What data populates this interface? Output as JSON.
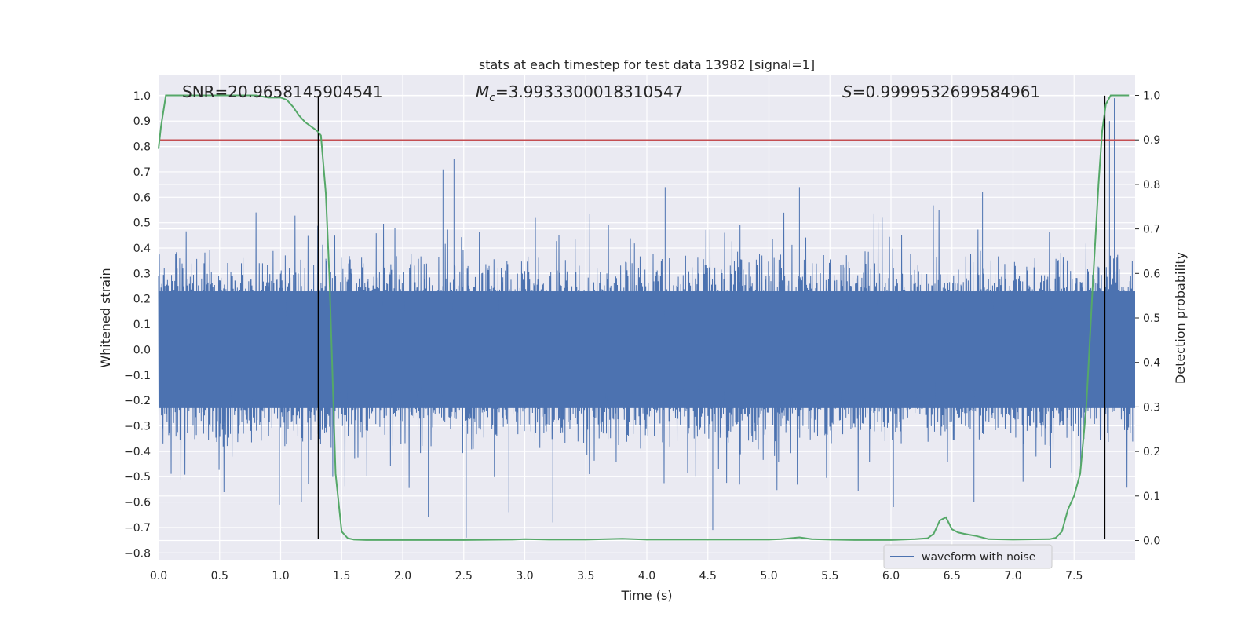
{
  "chart_data": {
    "type": "line",
    "title": "stats at each timestep for test data 13982 [signal=1]",
    "xlabel": "Time (s)",
    "ylabel": "Whitened strain",
    "y2label": "Detection probability",
    "xlim": [
      0.0,
      8.0
    ],
    "ylim": [
      -0.83,
      1.08
    ],
    "y2lim": [
      -0.045,
      1.045
    ],
    "x_ticks": [
      "0.0",
      "0.5",
      "1.0",
      "1.5",
      "2.0",
      "2.5",
      "3.0",
      "3.5",
      "4.0",
      "4.5",
      "5.0",
      "5.5",
      "6.0",
      "6.5",
      "7.0",
      "7.5"
    ],
    "y_ticks": [
      "1.0",
      "0.9",
      "0.8",
      "0.7",
      "0.6",
      "0.5",
      "0.4",
      "0.3",
      "0.2",
      "0.1",
      "0.0",
      "−0.1",
      "−0.2",
      "−0.3",
      "−0.4",
      "−0.5",
      "−0.6",
      "−0.7",
      "−0.8"
    ],
    "y2_ticks": [
      "1.0",
      "0.9",
      "0.8",
      "0.7",
      "0.6",
      "0.5",
      "0.4",
      "0.3",
      "0.2",
      "0.1",
      "0.0"
    ],
    "grid": true,
    "legend_position": "lower-right",
    "annotations": {
      "snr": "SNR=20.9658145904541",
      "mc_symbol": "M",
      "mc_sub": "c",
      "mc_value": "=3.9933300018310547",
      "s_symbol": "S",
      "s_value": "=0.9999532699584961"
    },
    "series": [
      {
        "name": "waveform with noise",
        "axis": "left",
        "color": "#4c72b0",
        "style": "noise",
        "x_range": [
          0.0,
          7.98
        ],
        "envelope_typical": [
          -0.45,
          0.45
        ],
        "envelope_peak": [
          -0.74,
          0.99
        ],
        "peaks": [
          {
            "x": 2.33,
            "y": 0.71
          },
          {
            "x": 2.42,
            "y": 0.75
          },
          {
            "x": 4.15,
            "y": 0.64
          },
          {
            "x": 5.25,
            "y": 0.64
          },
          {
            "x": 6.75,
            "y": 0.62
          },
          {
            "x": 7.83,
            "y": 0.99
          },
          {
            "x": 7.79,
            "y": 0.9
          },
          {
            "x": 2.52,
            "y": -0.74
          },
          {
            "x": 4.54,
            "y": -0.71
          },
          {
            "x": 3.23,
            "y": -0.68
          },
          {
            "x": 2.87,
            "y": -0.64
          },
          {
            "x": 2.21,
            "y": -0.66
          },
          {
            "x": 1.17,
            "y": -0.6
          },
          {
            "x": 0.99,
            "y": -0.61
          },
          {
            "x": 6.68,
            "y": -0.6
          },
          {
            "x": 6.02,
            "y": -0.62
          }
        ]
      },
      {
        "name": "",
        "axis": "right",
        "color": "#55a868",
        "x": [
          0.0,
          0.02,
          0.06,
          0.1,
          0.2,
          0.4,
          0.6,
          0.8,
          0.9,
          1.0,
          1.05,
          1.1,
          1.15,
          1.2,
          1.25,
          1.3,
          1.33,
          1.37,
          1.4,
          1.45,
          1.5,
          1.55,
          1.6,
          1.7,
          1.8,
          2.0,
          2.5,
          2.9,
          3.0,
          3.2,
          3.5,
          3.8,
          4.0,
          4.5,
          4.8,
          5.0,
          5.1,
          5.25,
          5.35,
          5.5,
          5.7,
          6.0,
          6.2,
          6.3,
          6.35,
          6.4,
          6.45,
          6.5,
          6.55,
          6.6,
          6.7,
          6.8,
          7.0,
          7.3,
          7.35,
          7.4,
          7.45,
          7.5,
          7.55,
          7.6,
          7.65,
          7.7,
          7.73,
          7.76,
          7.8,
          7.85,
          7.9,
          7.95
        ],
        "y": [
          0.88,
          0.93,
          1.0,
          1.0,
          1.0,
          1.0,
          1.0,
          1.0,
          0.995,
          0.995,
          0.99,
          0.975,
          0.955,
          0.94,
          0.93,
          0.92,
          0.91,
          0.78,
          0.59,
          0.15,
          0.02,
          0.005,
          0.002,
          0.001,
          0.001,
          0.001,
          0.001,
          0.002,
          0.003,
          0.002,
          0.002,
          0.004,
          0.002,
          0.002,
          0.002,
          0.002,
          0.003,
          0.007,
          0.003,
          0.002,
          0.001,
          0.001,
          0.003,
          0.005,
          0.015,
          0.045,
          0.052,
          0.025,
          0.018,
          0.015,
          0.01,
          0.003,
          0.002,
          0.003,
          0.006,
          0.02,
          0.07,
          0.1,
          0.15,
          0.3,
          0.56,
          0.8,
          0.92,
          0.98,
          1.0,
          1.0,
          1.0,
          1.0
        ]
      }
    ],
    "threshold": {
      "axis": "right",
      "value": 0.9,
      "color": "#c44e52"
    },
    "markers": {
      "x": [
        1.31,
        7.75
      ],
      "y_top": 1.0,
      "y_bottom": -0.745,
      "color": "#000000"
    }
  }
}
